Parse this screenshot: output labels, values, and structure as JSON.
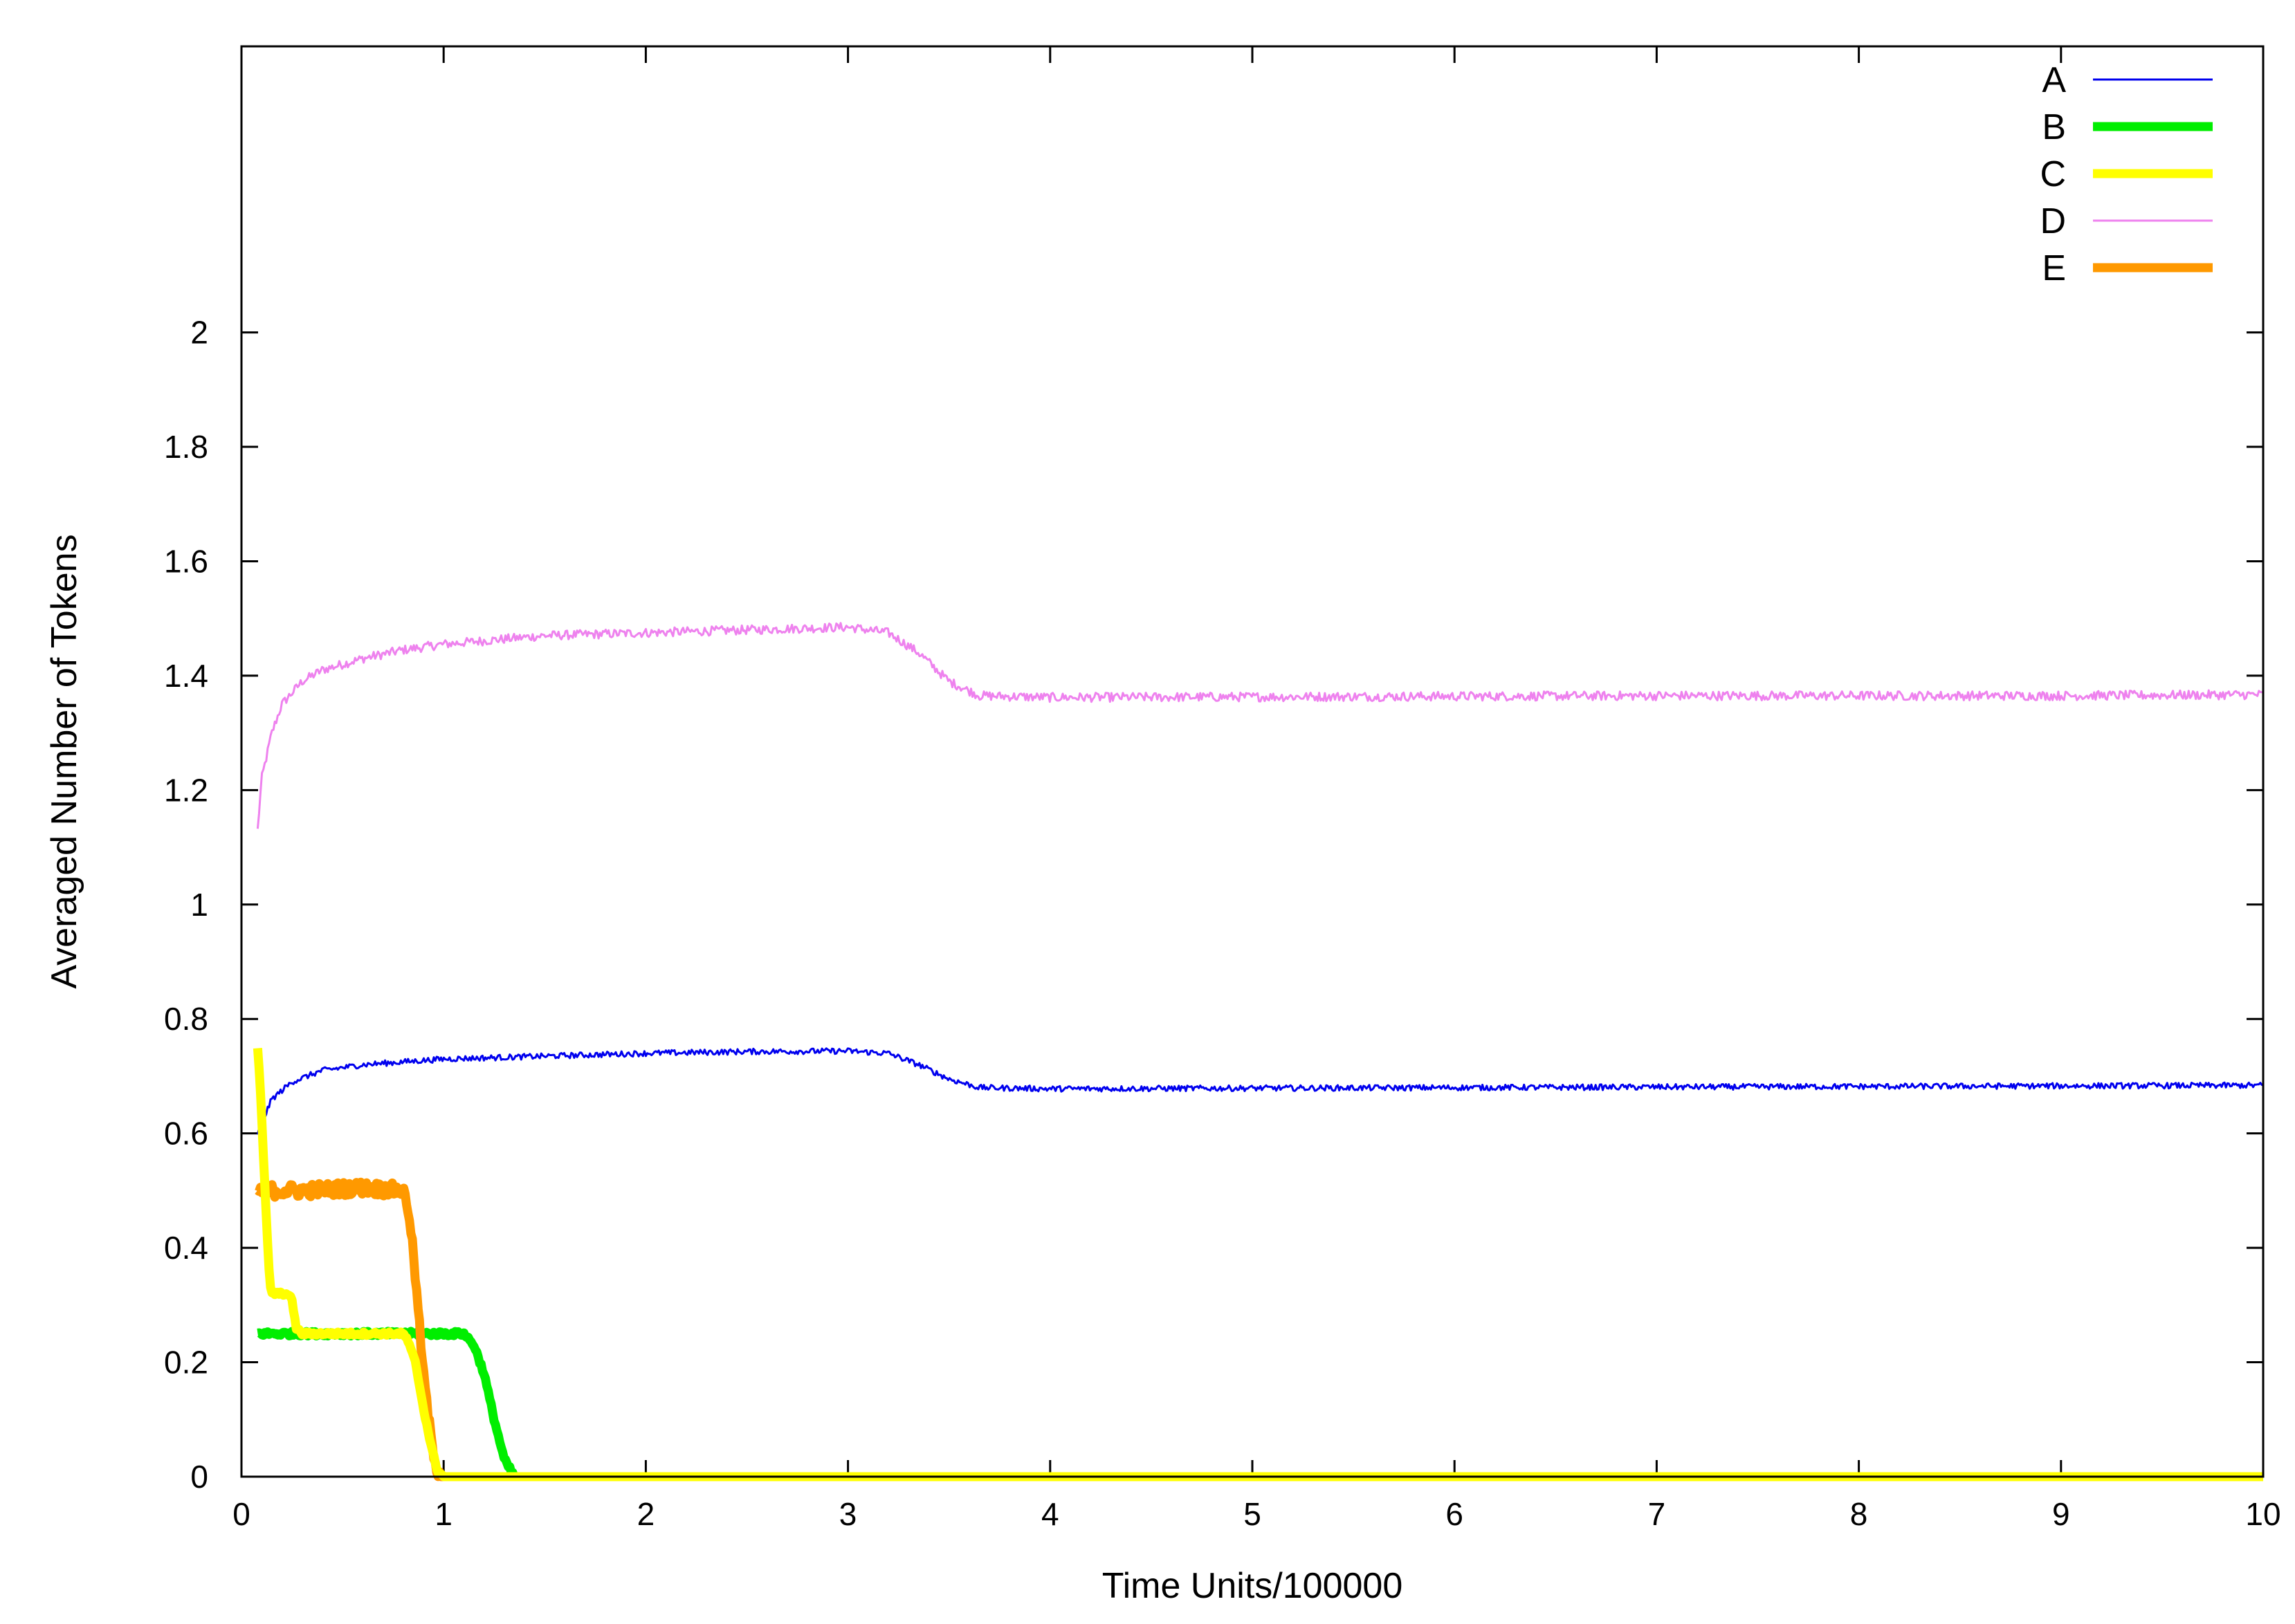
{
  "chart_data": {
    "type": "line",
    "title": "",
    "xlabel": "Time Units/100000",
    "ylabel": "Averaged Number of Tokens",
    "xlim": [
      0,
      10
    ],
    "ylim": [
      0,
      2.5
    ],
    "xticks": [
      0,
      1,
      2,
      3,
      4,
      5,
      6,
      7,
      8,
      9,
      10
    ],
    "xtick_labels": [
      "0",
      "1",
      "2",
      "3",
      "4",
      "5",
      "6",
      "7",
      "8",
      "9",
      "10"
    ],
    "yticks": [
      0,
      0.2,
      0.4,
      0.6,
      0.8,
      1,
      1.2,
      1.4,
      1.6,
      1.8,
      2
    ],
    "ytick_labels": [
      "0",
      "0.2",
      "0.4",
      "0.6",
      "0.8",
      "1",
      "1.2",
      "1.4",
      "1.6",
      "1.8",
      "2"
    ],
    "grid": false,
    "legend_position": "top-right",
    "series": [
      {
        "name": "A",
        "color": "#0000ee",
        "width": "thin",
        "x": [
          0.08,
          0.15,
          0.25,
          0.4,
          0.6,
          0.8,
          1.0,
          1.5,
          2.0,
          2.5,
          3.0,
          3.2,
          3.35,
          3.5,
          3.65,
          4.0,
          5.0,
          6.0,
          7.0,
          8.0,
          9.0,
          10.0
        ],
        "y": [
          0.6,
          0.66,
          0.69,
          0.71,
          0.72,
          0.725,
          0.73,
          0.735,
          0.74,
          0.743,
          0.744,
          0.74,
          0.72,
          0.695,
          0.68,
          0.678,
          0.679,
          0.68,
          0.681,
          0.682,
          0.683,
          0.684
        ],
        "noise": 0.005
      },
      {
        "name": "B",
        "color": "#00ee00",
        "width": "thick",
        "x": [
          0.08,
          0.5,
          1.0,
          1.1,
          1.15,
          1.2,
          1.25,
          1.3,
          1.35,
          2.0,
          4.0,
          6.0,
          8.0,
          10.0
        ],
        "y": [
          0.25,
          0.25,
          0.25,
          0.25,
          0.23,
          0.18,
          0.1,
          0.03,
          0.0,
          0.0,
          0.0,
          0.0,
          0.0,
          0.0
        ],
        "noise": 0.004
      },
      {
        "name": "C",
        "color": "#ffff00",
        "width": "thick",
        "x": [
          0.08,
          0.09,
          0.11,
          0.13,
          0.14,
          0.15,
          0.18,
          0.2,
          0.22,
          0.25,
          0.27,
          0.3,
          0.5,
          0.8,
          0.82,
          0.86,
          0.9,
          0.94,
          0.97,
          1.0,
          2.0,
          4.0,
          6.0,
          8.0,
          10.0
        ],
        "y": [
          0.75,
          0.7,
          0.55,
          0.4,
          0.34,
          0.32,
          0.32,
          0.32,
          0.32,
          0.31,
          0.26,
          0.25,
          0.25,
          0.25,
          0.24,
          0.2,
          0.12,
          0.05,
          0.01,
          0.0,
          0.0,
          0.0,
          0.0,
          0.0,
          0.0
        ],
        "noise": 0.003
      },
      {
        "name": "D",
        "color": "#ee82ee",
        "width": "thin",
        "x": [
          0.08,
          0.1,
          0.15,
          0.2,
          0.3,
          0.4,
          0.6,
          0.8,
          1.0,
          1.5,
          2.0,
          2.5,
          3.0,
          3.2,
          3.35,
          3.5,
          3.65,
          4.0,
          5.0,
          6.0,
          7.0,
          8.0,
          9.0,
          10.0
        ],
        "y": [
          1.13,
          1.22,
          1.3,
          1.35,
          1.39,
          1.41,
          1.43,
          1.445,
          1.455,
          1.47,
          1.475,
          1.48,
          1.485,
          1.475,
          1.44,
          1.39,
          1.365,
          1.362,
          1.363,
          1.364,
          1.365,
          1.365,
          1.365,
          1.367
        ],
        "noise": 0.008
      },
      {
        "name": "E",
        "color": "#ff9900",
        "width": "thick",
        "x": [
          0.08,
          0.3,
          0.6,
          0.8,
          0.83,
          0.86,
          0.9,
          0.94,
          0.97,
          1.0,
          2.0,
          4.0,
          6.0,
          8.0,
          10.0
        ],
        "y": [
          0.5,
          0.5,
          0.505,
          0.5,
          0.46,
          0.35,
          0.18,
          0.06,
          0.01,
          0.0,
          0.0,
          0.0,
          0.0,
          0.0,
          0.0
        ],
        "noise": 0.012
      }
    ]
  }
}
